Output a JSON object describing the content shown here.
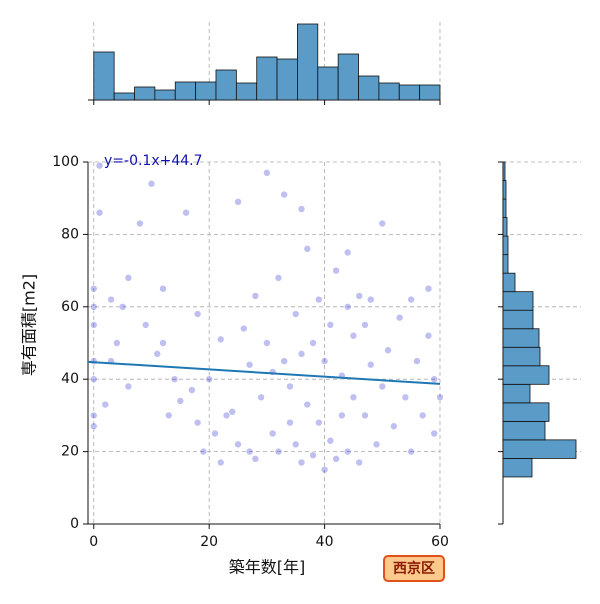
{
  "chart_data": [
    {
      "type": "scatter",
      "xlabel": "築年数[年]",
      "ylabel": "専有面積[m2]",
      "annotation": "y=-0.1x+44.7",
      "color": "#2b2bd0",
      "line_color": "#1f77b4",
      "grid": true,
      "xlim": [
        -1,
        60
      ],
      "ylim": [
        0,
        100
      ],
      "xticks": [
        0,
        20,
        40,
        60
      ],
      "yticks": [
        0,
        20,
        40,
        60,
        80,
        100
      ],
      "x": [
        0,
        0,
        0,
        0,
        0,
        0,
        0,
        1,
        1,
        2,
        3,
        4,
        5,
        6,
        8,
        9,
        10,
        11,
        12,
        13,
        14,
        15,
        16,
        17,
        18,
        19,
        20,
        21,
        22,
        23,
        25,
        25,
        26,
        27,
        28,
        28,
        30,
        30,
        31,
        32,
        32,
        33,
        33,
        34,
        35,
        35,
        36,
        36,
        37,
        37,
        38,
        38,
        39,
        39,
        40,
        40,
        41,
        41,
        42,
        42,
        43,
        44,
        44,
        45,
        45,
        46,
        46,
        47,
        48,
        48,
        49,
        50,
        50,
        51,
        52,
        53,
        54,
        55,
        55,
        56,
        57,
        58,
        58,
        59,
        59,
        60,
        24,
        29,
        34,
        31,
        27,
        43,
        47,
        36,
        12,
        6,
        3,
        18,
        22,
        44
      ],
      "y": [
        65,
        60,
        55,
        45,
        40,
        30,
        27,
        99,
        86,
        33,
        62,
        50,
        60,
        68,
        83,
        55,
        94,
        47,
        65,
        30,
        40,
        34,
        86,
        37,
        28,
        20,
        40,
        25,
        51,
        30,
        89,
        22,
        54,
        44,
        63,
        18,
        97,
        50,
        25,
        20,
        68,
        91,
        45,
        38,
        22,
        58,
        87,
        17,
        76,
        33,
        50,
        19,
        62,
        28,
        45,
        15,
        55,
        23,
        70,
        18,
        41,
        60,
        20,
        35,
        52,
        63,
        17,
        30,
        62,
        44,
        22,
        83,
        38,
        48,
        27,
        57,
        35,
        62,
        20,
        45,
        30,
        65,
        52,
        40,
        25,
        35,
        31,
        35,
        28,
        42,
        20,
        30,
        55,
        47,
        50,
        38,
        45,
        58,
        17,
        75
      ],
      "regression": {
        "x": [
          -1,
          60
        ],
        "y": [
          44.8,
          38.7
        ]
      }
    },
    {
      "type": "histogram",
      "orientation": "vertical",
      "color": "#5b9bc8",
      "bins": [
        0,
        3.53,
        7.06,
        10.59,
        14.12,
        17.65,
        21.18,
        24.71,
        28.24,
        31.76,
        35.29,
        38.82,
        42.35,
        45.88,
        49.41,
        52.94,
        56.47,
        60
      ],
      "counts": [
        48,
        7,
        13,
        10,
        18,
        18,
        30,
        17,
        43,
        41,
        76,
        33,
        46,
        24,
        17,
        15,
        15
      ],
      "countlim": [
        0,
        78
      ]
    },
    {
      "type": "histogram",
      "orientation": "horizontal",
      "color": "#5b9bc8",
      "bins": [
        13,
        18.12,
        23.24,
        28.35,
        33.47,
        38.59,
        43.71,
        48.82,
        53.94,
        59.06,
        64.18,
        69.29,
        74.41,
        79.53,
        84.65,
        89.76,
        94.88,
        100
      ],
      "counts": [
        29,
        73,
        42,
        46,
        27,
        46,
        37,
        36,
        30,
        30,
        12,
        5,
        5,
        4,
        3,
        3,
        2
      ],
      "countlim": [
        0,
        78
      ]
    }
  ],
  "badge": "西京区"
}
